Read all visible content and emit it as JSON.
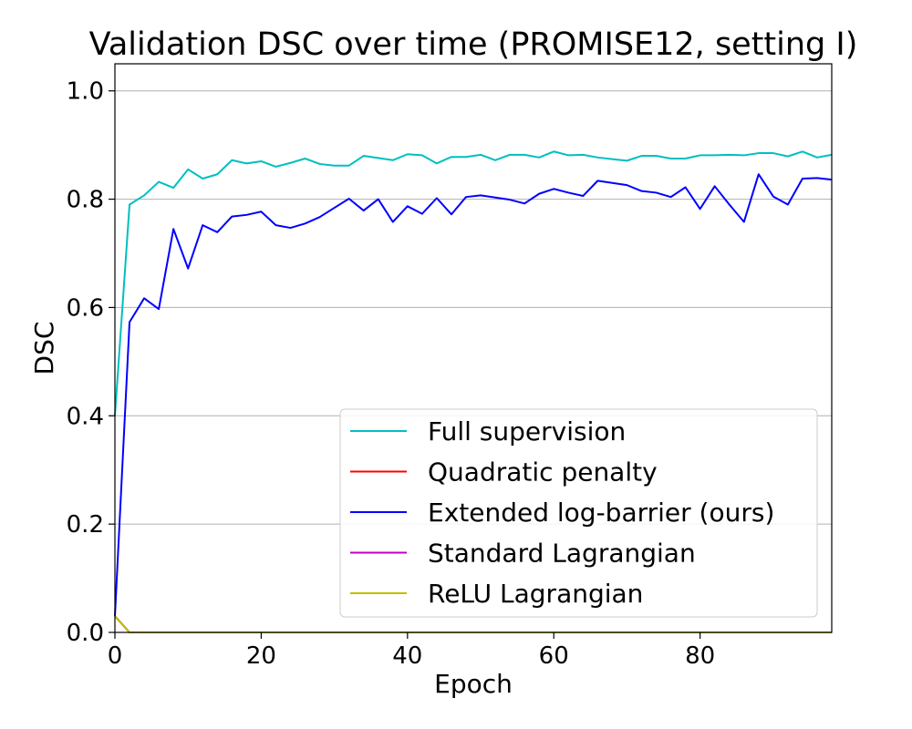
{
  "chart_data": {
    "type": "line",
    "title": "Validation DSC over time (PROMISE12, setting I)",
    "xlabel": "Epoch",
    "ylabel": "DSC",
    "xlim": [
      0,
      98
    ],
    "ylim": [
      0,
      1.05
    ],
    "grid": "horizontal",
    "legend_position": "lower-right",
    "x_ticks": [
      0,
      20,
      40,
      60,
      80
    ],
    "x_tick_labels": [
      "0",
      "20",
      "40",
      "60",
      "80"
    ],
    "y_ticks": [
      0.0,
      0.2,
      0.4,
      0.6,
      0.8,
      1.0
    ],
    "y_tick_labels": [
      "0.0",
      "0.2",
      "0.4",
      "0.6",
      "0.8",
      "1.0"
    ],
    "x": [
      0,
      2,
      4,
      6,
      8,
      10,
      12,
      14,
      16,
      18,
      20,
      22,
      24,
      26,
      28,
      30,
      32,
      34,
      36,
      38,
      40,
      42,
      44,
      46,
      48,
      50,
      52,
      54,
      56,
      58,
      60,
      62,
      64,
      66,
      68,
      70,
      72,
      74,
      76,
      78,
      80,
      82,
      84,
      86,
      88,
      90,
      92,
      94,
      96,
      98
    ],
    "series": [
      {
        "name": "Full supervision",
        "color": "#00bfbf",
        "values": [
          0.4,
          0.79,
          0.807,
          0.832,
          0.821,
          0.855,
          0.838,
          0.846,
          0.872,
          0.866,
          0.87,
          0.86,
          0.867,
          0.875,
          0.865,
          0.862,
          0.862,
          0.88,
          0.876,
          0.872,
          0.883,
          0.881,
          0.866,
          0.878,
          0.878,
          0.882,
          0.872,
          0.882,
          0.882,
          0.877,
          0.888,
          0.881,
          0.882,
          0.877,
          0.874,
          0.871,
          0.88,
          0.88,
          0.875,
          0.875,
          0.881,
          0.881,
          0.882,
          0.881,
          0.885,
          0.885,
          0.879,
          0.888,
          0.877,
          0.882
        ]
      },
      {
        "name": "Quadratic penalty",
        "color": "#ff0000",
        "values": [
          0.03,
          0.0,
          0.0,
          0.0,
          0.0,
          0.0,
          0.0,
          0.0,
          0.0,
          0.0,
          0.0,
          0.0,
          0.0,
          0.0,
          0.0,
          0.0,
          0.0,
          0.0,
          0.0,
          0.0,
          0.0,
          0.0,
          0.0,
          0.0,
          0.0,
          0.0,
          0.0,
          0.0,
          0.0,
          0.0,
          0.0,
          0.0,
          0.0,
          0.0,
          0.0,
          0.0,
          0.0,
          0.0,
          0.0,
          0.0,
          0.0,
          0.0,
          0.0,
          0.0,
          0.0,
          0.0,
          0.0,
          0.0,
          0.0,
          0.0
        ]
      },
      {
        "name": "Extended log-barrier (ours)",
        "color": "#0000ff",
        "values": [
          0.03,
          0.573,
          0.617,
          0.597,
          0.745,
          0.672,
          0.752,
          0.739,
          0.768,
          0.771,
          0.777,
          0.752,
          0.747,
          0.755,
          0.767,
          0.784,
          0.801,
          0.779,
          0.8,
          0.758,
          0.787,
          0.773,
          0.802,
          0.772,
          0.804,
          0.807,
          0.803,
          0.799,
          0.792,
          0.81,
          0.819,
          0.812,
          0.806,
          0.834,
          0.83,
          0.826,
          0.815,
          0.812,
          0.804,
          0.822,
          0.782,
          0.824,
          0.79,
          0.758,
          0.846,
          0.805,
          0.79,
          0.838,
          0.839,
          0.836
        ]
      },
      {
        "name": "Standard Lagrangian",
        "color": "#bf00bf",
        "values": [
          0.03,
          0.0,
          0.0,
          0.0,
          0.0,
          0.0,
          0.0,
          0.0,
          0.0,
          0.0,
          0.0,
          0.0,
          0.0,
          0.0,
          0.0,
          0.0,
          0.0,
          0.0,
          0.0,
          0.0,
          0.0,
          0.0,
          0.0,
          0.0,
          0.0,
          0.0,
          0.0,
          0.0,
          0.0,
          0.0,
          0.0,
          0.0,
          0.0,
          0.0,
          0.0,
          0.0,
          0.0,
          0.0,
          0.0,
          0.0,
          0.0,
          0.0,
          0.0,
          0.0,
          0.0,
          0.0,
          0.0,
          0.0,
          0.0,
          0.0
        ]
      },
      {
        "name": "ReLU Lagrangian",
        "color": "#bfbf00",
        "values": [
          0.03,
          0.0,
          0.0,
          0.0,
          0.0,
          0.0,
          0.0,
          0.0,
          0.0,
          0.0,
          0.0,
          0.0,
          0.0,
          0.0,
          0.0,
          0.0,
          0.0,
          0.0,
          0.0,
          0.0,
          0.0,
          0.0,
          0.0,
          0.0,
          0.0,
          0.0,
          0.0,
          0.0,
          0.0,
          0.0,
          0.0,
          0.0,
          0.0,
          0.0,
          0.0,
          0.0,
          0.0,
          0.0,
          0.0,
          0.0,
          0.0,
          0.0,
          0.0,
          0.0,
          0.0,
          0.0,
          0.0,
          0.0,
          0.0,
          0.0
        ]
      }
    ]
  }
}
